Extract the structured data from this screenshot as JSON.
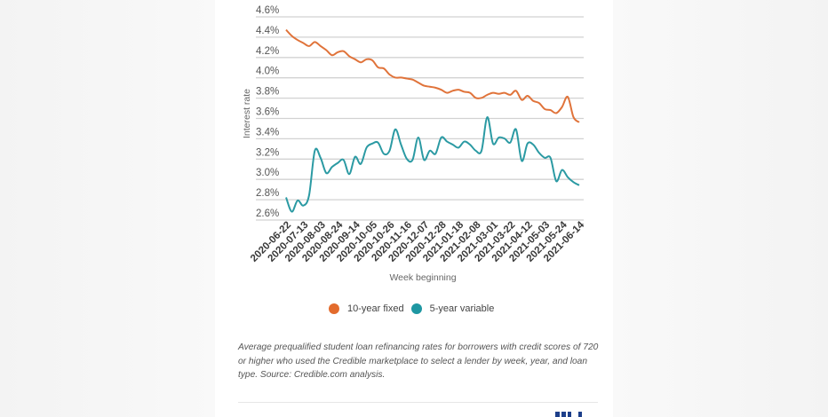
{
  "chart_data": {
    "type": "line",
    "title": "",
    "xlabel": "Week beginning",
    "ylabel": "Interest rate",
    "ylim": [
      2.6,
      4.6
    ],
    "y_ticks": [
      "2.6%",
      "2.8%",
      "3.0%",
      "3.2%",
      "3.4%",
      "3.6%",
      "3.8%",
      "4.0%",
      "4.2%",
      "4.4%",
      "4.6%"
    ],
    "y_tick_values": [
      2.6,
      2.8,
      3.0,
      3.2,
      3.4,
      3.6,
      3.8,
      4.0,
      4.2,
      4.4,
      4.6
    ],
    "grid": true,
    "x_tick_labels": [
      "2020-06-22",
      "2020-07-13",
      "2020-08-03",
      "2020-08-24",
      "2020-09-14",
      "2020-10-05",
      "2020-10-26",
      "2020-11-16",
      "2020-12-07",
      "2020-12-28",
      "2021-01-18",
      "2021-02-08",
      "2021-03-01",
      "2021-03-22",
      "2021-04-12",
      "2021-05-03",
      "2021-05-24",
      "2021-06-14"
    ],
    "x_tick_every_weeks": 3,
    "num_weeks": 52,
    "legend_position": "bottom-center",
    "series": [
      {
        "name": "10-year fixed",
        "color": "#e0733a",
        "values": [
          4.42,
          4.36,
          4.32,
          4.29,
          4.26,
          4.3,
          4.26,
          4.22,
          4.17,
          4.2,
          4.21,
          4.16,
          4.13,
          4.1,
          4.13,
          4.12,
          4.05,
          4.04,
          3.98,
          3.95,
          3.95,
          3.94,
          3.93,
          3.9,
          3.87,
          3.86,
          3.85,
          3.83,
          3.8,
          3.82,
          3.83,
          3.81,
          3.8,
          3.75,
          3.75,
          3.78,
          3.8,
          3.79,
          3.8,
          3.78,
          3.82,
          3.73,
          3.77,
          3.72,
          3.7,
          3.64,
          3.63,
          3.6,
          3.66,
          3.76,
          3.56,
          3.51
        ]
      },
      {
        "name": "5-year variable",
        "color": "#2b9aa3",
        "values": [
          2.77,
          2.63,
          2.74,
          2.69,
          2.79,
          3.23,
          3.16,
          3.01,
          3.07,
          3.11,
          3.14,
          3.0,
          3.17,
          3.1,
          3.26,
          3.3,
          3.31,
          3.2,
          3.23,
          3.44,
          3.29,
          3.15,
          3.14,
          3.36,
          3.14,
          3.23,
          3.2,
          3.36,
          3.32,
          3.29,
          3.26,
          3.32,
          3.29,
          3.23,
          3.23,
          3.56,
          3.3,
          3.36,
          3.35,
          3.31,
          3.44,
          3.13,
          3.3,
          3.29,
          3.21,
          3.16,
          3.16,
          2.93,
          3.04,
          2.97,
          2.92,
          2.89
        ]
      }
    ]
  },
  "legend": {
    "items": [
      {
        "label": "10-year fixed",
        "color": "#e36b2c"
      },
      {
        "label": "5-year variable",
        "color": "#1e97a2"
      }
    ]
  },
  "caption": "Average prequalified student loan refinancing rates for borrowers with credit scores of 720 or higher who used the Credible marketplace to select a lender by week, year, and loan type. Source: Credible.com analysis."
}
